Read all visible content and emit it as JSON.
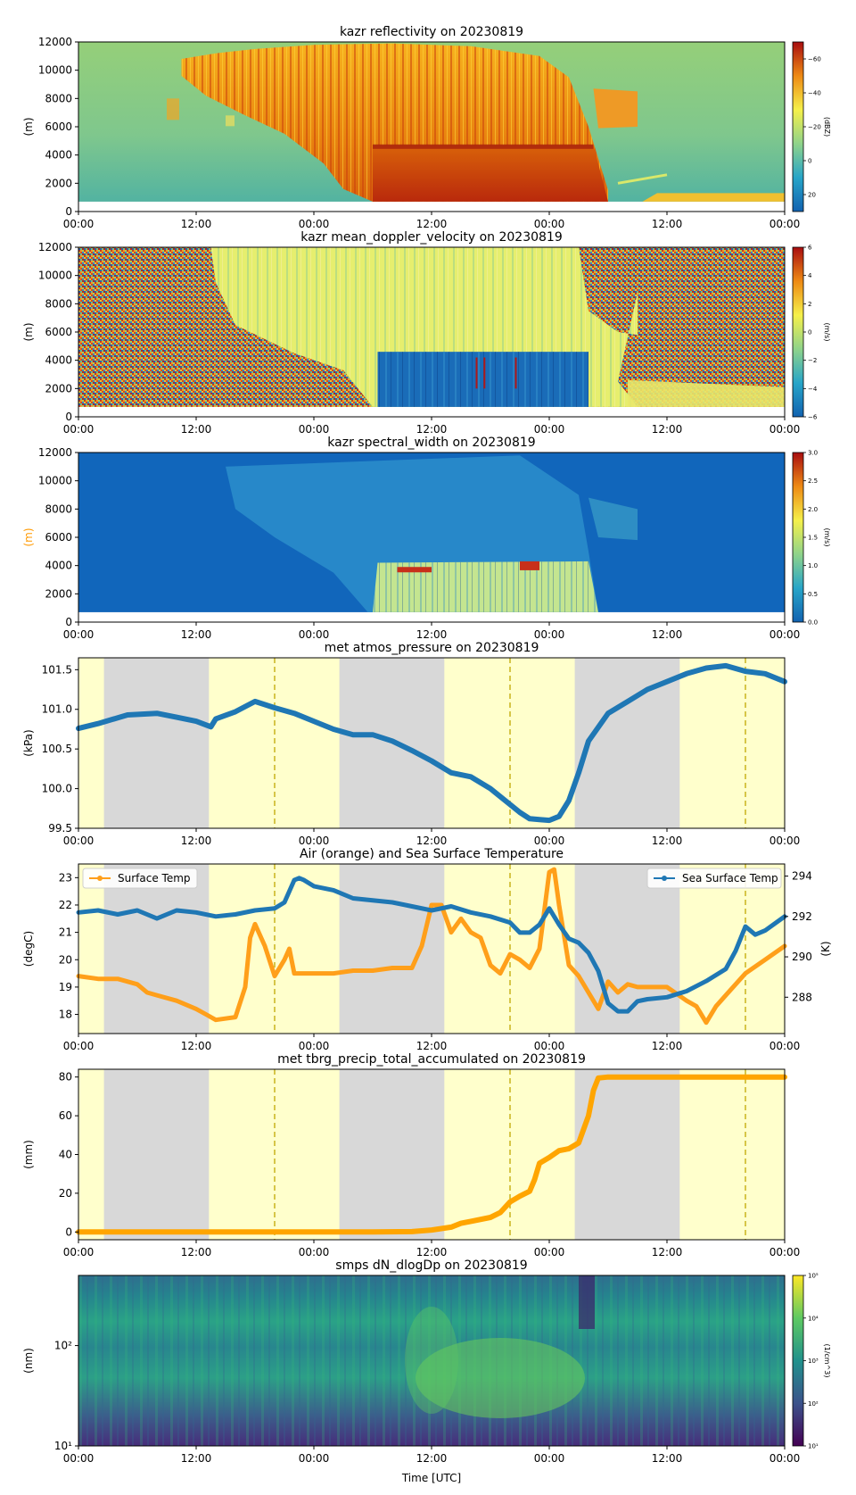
{
  "figure": {
    "xlabel": "Time [UTC]"
  },
  "time_ticks": [
    "00:00",
    "12:00",
    "00:00",
    "12:00",
    "00:00",
    "12:00",
    "00:00"
  ],
  "chart_data": [
    {
      "type": "heatmap",
      "title": "kazr reflectivity on 20230819",
      "ylabel": "(m)",
      "ylabel_color": "#000000",
      "ylim": [
        0,
        12000
      ],
      "yticks": [
        "0",
        "2000",
        "4000",
        "6000",
        "8000",
        "10000",
        "12000"
      ],
      "colorbar": {
        "label": "(dBZ)",
        "range": [
          -70,
          30
        ],
        "ticks": [
          "20",
          "0",
          "−20",
          "−40",
          "−60"
        ],
        "colormap": "jet"
      }
    },
    {
      "type": "heatmap",
      "title": "kazr mean_doppler_velocity on 20230819",
      "ylabel": "(m)",
      "ylabel_color": "#000000",
      "ylim": [
        0,
        12000
      ],
      "yticks": [
        "0",
        "2000",
        "4000",
        "6000",
        "8000",
        "10000",
        "12000"
      ],
      "colorbar": {
        "label": "(m/s)",
        "range": [
          -6,
          6
        ],
        "ticks": [
          "6",
          "4",
          "2",
          "0",
          "−2",
          "−4",
          "−6"
        ],
        "colormap": "jet"
      }
    },
    {
      "type": "heatmap",
      "title": "kazr spectral_width on 20230819",
      "ylabel": "(m)",
      "ylabel_color": "#ff9900",
      "ylim": [
        0,
        12000
      ],
      "yticks": [
        "0",
        "2000",
        "4000",
        "6000",
        "8000",
        "10000",
        "12000"
      ],
      "colorbar": {
        "label": "(m/s)",
        "range": [
          0,
          3
        ],
        "ticks": [
          "3.0",
          "2.5",
          "2.0",
          "1.5",
          "1.0",
          "0.5",
          "0.0"
        ],
        "colormap": "jet"
      }
    },
    {
      "type": "line",
      "title": "met atmos_pressure on 20230819",
      "ylabel": "(kPa)",
      "ylim": [
        99.5,
        101.65
      ],
      "yticks": [
        "99.5",
        "100.0",
        "100.5",
        "101.0",
        "101.5"
      ],
      "series": [
        {
          "name": "atmos_pressure",
          "color": "#1f77b4",
          "x": [
            0,
            2,
            5,
            8,
            10,
            12,
            13.5,
            14,
            16,
            18,
            20,
            22,
            24,
            26,
            28,
            30,
            32,
            34,
            36,
            38,
            40,
            42,
            44,
            45,
            46,
            47,
            48,
            49,
            50,
            51,
            52,
            54,
            56,
            58,
            60,
            62,
            64,
            66,
            68,
            70,
            72
          ],
          "values": [
            100.76,
            100.82,
            100.93,
            100.95,
            100.9,
            100.85,
            100.78,
            100.88,
            100.97,
            101.1,
            101.02,
            100.95,
            100.85,
            100.75,
            100.68,
            100.68,
            100.6,
            100.48,
            100.35,
            100.2,
            100.15,
            100.0,
            99.8,
            99.7,
            99.62,
            99.61,
            99.6,
            99.65,
            99.85,
            100.2,
            100.6,
            100.95,
            101.1,
            101.25,
            101.35,
            101.45,
            101.52,
            101.55,
            101.48,
            101.45,
            101.35
          ]
        }
      ]
    },
    {
      "type": "line",
      "title": "Air (orange) and Sea Surface Temperature",
      "ylabel": "(degC)",
      "ylim": [
        17.3,
        23.5
      ],
      "yticks": [
        "18",
        "19",
        "20",
        "21",
        "22",
        "23"
      ],
      "y2label": "(K)",
      "y2lim": [
        286.2,
        294.6
      ],
      "y2ticks": [
        "288",
        "290",
        "292",
        "294"
      ],
      "series": [
        {
          "name": "Surface Temp",
          "color": "#ff9f1a",
          "axis": "left",
          "x": [
            0,
            2,
            4,
            6,
            7,
            8,
            10,
            12,
            13,
            14,
            16,
            17,
            17.5,
            18,
            19,
            20,
            21,
            21.5,
            22,
            24,
            26,
            28,
            30,
            32,
            34,
            35,
            36,
            37,
            38,
            39,
            40,
            41,
            42,
            43,
            44,
            45,
            46,
            47,
            48,
            48.5,
            49,
            50,
            51,
            52,
            53,
            54,
            55,
            56,
            57,
            58,
            60,
            62,
            63,
            64,
            65,
            66,
            68,
            70,
            72
          ],
          "values": [
            19.4,
            19.3,
            19.3,
            19.1,
            18.8,
            18.7,
            18.5,
            18.2,
            18.0,
            17.8,
            17.9,
            19.0,
            20.8,
            21.3,
            20.5,
            19.4,
            20.0,
            20.4,
            19.5,
            19.5,
            19.5,
            19.6,
            19.6,
            19.7,
            19.7,
            20.5,
            22.0,
            22.0,
            21.0,
            21.5,
            21.0,
            20.8,
            19.8,
            19.5,
            20.2,
            20.0,
            19.7,
            20.4,
            23.2,
            23.3,
            22.0,
            19.8,
            19.4,
            18.8,
            18.2,
            19.2,
            18.8,
            19.1,
            19.0,
            19.0,
            19.0,
            18.5,
            18.3,
            17.7,
            18.3,
            18.7,
            19.5,
            20.0,
            20.5
          ]
        },
        {
          "name": "Sea Surface Temp",
          "color": "#1f77b4",
          "axis": "right",
          "x": [
            0,
            2,
            4,
            6,
            8,
            10,
            12,
            14,
            16,
            18,
            20,
            21,
            22,
            22.5,
            23,
            24,
            26,
            28,
            30,
            32,
            34,
            36,
            38,
            40,
            42,
            44,
            45,
            46,
            47,
            48,
            49,
            50,
            51,
            52,
            53,
            54,
            55,
            56,
            57,
            58,
            60,
            62,
            64,
            66,
            67,
            68,
            69,
            70,
            72
          ],
          "values": [
            292.2,
            292.3,
            292.1,
            292.3,
            291.9,
            292.3,
            292.2,
            292.0,
            292.1,
            292.3,
            292.4,
            292.7,
            293.8,
            293.9,
            293.8,
            293.5,
            293.3,
            292.9,
            292.8,
            292.7,
            292.5,
            292.3,
            292.5,
            292.2,
            292.0,
            291.7,
            291.2,
            291.2,
            291.6,
            292.4,
            291.6,
            290.9,
            290.7,
            290.2,
            289.3,
            287.7,
            287.3,
            287.3,
            287.8,
            287.9,
            288.0,
            288.3,
            288.8,
            289.4,
            290.3,
            291.5,
            291.1,
            291.3,
            292.0
          ]
        }
      ],
      "legend": {
        "left": "Surface Temp",
        "right": "Sea Surface Temp"
      }
    },
    {
      "type": "line",
      "title": "met tbrg_precip_total_accumulated on 20230819",
      "ylabel": "(mm)",
      "ylim": [
        -4,
        84
      ],
      "yticks": [
        "0",
        "20",
        "40",
        "60",
        "80"
      ],
      "series": [
        {
          "name": "precip_total_accumulated",
          "color": "#ffa500",
          "x": [
            0,
            30,
            34,
            36,
            38,
            39,
            40,
            42,
            43,
            44,
            45,
            46,
            46.5,
            47,
            48,
            49,
            50,
            51,
            52,
            52.5,
            53,
            54,
            55,
            60,
            66,
            72
          ],
          "values": [
            0,
            0,
            0.2,
            1.0,
            2.5,
            4.5,
            5.5,
            7.5,
            10.0,
            15.5,
            18.5,
            21.0,
            27.0,
            35.5,
            38.5,
            42.0,
            43.0,
            46.0,
            60.0,
            73.0,
            79.5,
            80.0,
            80.0,
            80.0,
            80.0,
            80.0
          ]
        }
      ]
    },
    {
      "type": "heatmap",
      "title": "smps dN_dlogDp on 20230819",
      "ylabel": "(nm)",
      "yscale": "log",
      "ylim": [
        10,
        500
      ],
      "yticks": [
        "10¹",
        "10²"
      ],
      "colorbar": {
        "label": "(1/cm^3)",
        "range": [
          1,
          5
        ],
        "ticks": [
          "10⁵",
          "10⁴",
          "10³",
          "10²",
          "10¹"
        ],
        "colormap": "viridis"
      }
    }
  ],
  "shading": {
    "night_color": "#d8d8d8",
    "day_color": "#ffffcc",
    "night_spans": [
      [
        2.6,
        13.3
      ],
      [
        26.6,
        37.3
      ],
      [
        50.6,
        61.3
      ]
    ],
    "noon_lines": [
      20.0,
      44.0,
      68.0
    ],
    "noon_line_color": "#bfa800"
  }
}
